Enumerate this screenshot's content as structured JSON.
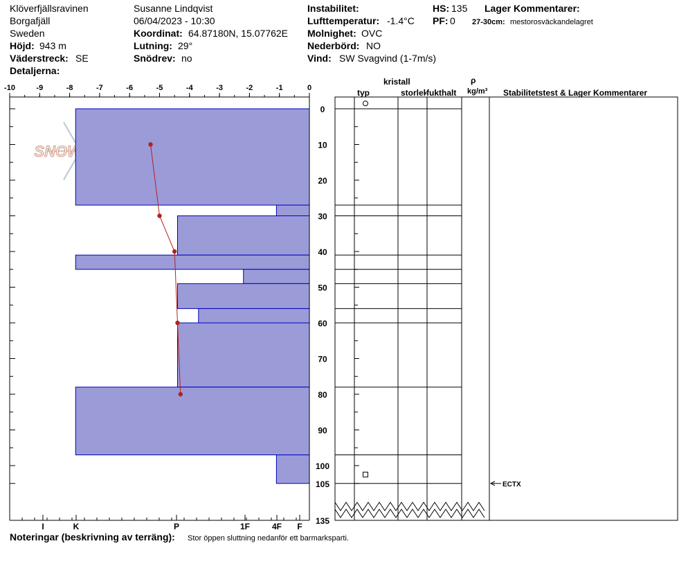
{
  "header": {
    "location": "Klöverfjällsravinen",
    "region": "Borgafjäll",
    "country": "Sweden",
    "elevation_label": "Höjd:",
    "elevation": "943 m",
    "aspect_label": "Väderstreck:",
    "aspect": "SE",
    "details_label": "Detaljerna:",
    "observer": "Susanne Lindqvist",
    "datetime": "06/04/2023 - 10:30",
    "coord_label": "Koordinat:",
    "coord": "64.87180N, 15.07762E",
    "slope_label": "Lutning:",
    "slope": "29°",
    "drift_label": "Snödrev:",
    "drift": "no",
    "instability_label": "Instabilitet:",
    "airtemp_label": "Lufttemperatur:",
    "airtemp": "-1.4°C",
    "sky_label": "Molnighet:",
    "sky": "OVC",
    "precip_label": "Nederbörd:",
    "precip": "NO",
    "wind_label": "Vind:",
    "wind": "SW Svagvind (1-7m/s)",
    "hs_label": "HS:",
    "hs": "135",
    "pf_label": "PF:",
    "pf": "0",
    "layer_comments_label": "Lager Kommentarer:",
    "layer_comment_depth": "27-30cm:",
    "layer_comment_text": "mestorosväckandelagret"
  },
  "columns": {
    "crystal": "kristall",
    "type": "typ",
    "size": "storlek",
    "moisture": "fukthalt",
    "rho": "ρ",
    "density_unit": "kg/m³",
    "stability": "Stabilitetstest & Lager Kommentarer"
  },
  "watermark": "SNOWPILOT",
  "notes_label": "Noteringar (beskrivning av terräng):",
  "notes": "Stor öppen sluttning nedanför ett barmarksparti.",
  "colors": {
    "layer_fill": "#9b9bd8",
    "layer_stroke": "#0000c0",
    "temp": "#b22222",
    "watermark": "#c9c9c9"
  },
  "chart_data": {
    "type": "snow-profile",
    "temp_axis": {
      "range": [
        -10,
        0
      ],
      "ticks": [
        "-10",
        "-9",
        "-8",
        "-7",
        "-6",
        "-5",
        "-4",
        "-3",
        "-2",
        "-1",
        "0"
      ]
    },
    "hardness_axis": {
      "ticks": [
        "I",
        "K",
        "P",
        "1F",
        "4F",
        "F"
      ]
    },
    "depth_axis": {
      "ticks": [
        "0",
        "10",
        "20",
        "30",
        "40",
        "50",
        "60",
        "70",
        "80",
        "90",
        "100",
        "105",
        "135"
      ]
    },
    "hardness_layers": [
      {
        "top": 0,
        "bottom": 27,
        "temp_scale_value": -7.8
      },
      {
        "top": 27,
        "bottom": 30,
        "temp_scale_value": -1.1
      },
      {
        "top": 30,
        "bottom": 41,
        "temp_scale_value": -4.4
      },
      {
        "top": 41,
        "bottom": 45,
        "temp_scale_value": -7.8
      },
      {
        "top": 45,
        "bottom": 49,
        "temp_scale_value": -2.2
      },
      {
        "top": 49,
        "bottom": 56,
        "temp_scale_value": -4.4
      },
      {
        "top": 56,
        "bottom": 60,
        "temp_scale_value": -3.7
      },
      {
        "top": 60,
        "bottom": 78,
        "temp_scale_value": -4.4
      },
      {
        "top": 78,
        "bottom": 97,
        "temp_scale_value": -7.8
      },
      {
        "top": 97,
        "bottom": 105,
        "temp_scale_value": -1.1
      }
    ],
    "temperature_profile": [
      {
        "depth": 10,
        "temp": -5.3
      },
      {
        "depth": 30,
        "temp": -5.0
      },
      {
        "depth": 40,
        "temp": -4.5
      },
      {
        "depth": 60,
        "temp": -4.4
      },
      {
        "depth": 80,
        "temp": -4.3
      }
    ],
    "layer_boundaries_right": [
      0,
      27,
      30,
      41,
      45,
      49,
      56,
      60,
      78,
      97,
      105
    ],
    "grain_symbols": [
      {
        "depth": -1.5,
        "symbol": "circle"
      },
      {
        "depth": 102.5,
        "symbol": "square"
      }
    ],
    "stability_tests": [
      {
        "depth": 105,
        "result": "ECTX"
      }
    ]
  }
}
